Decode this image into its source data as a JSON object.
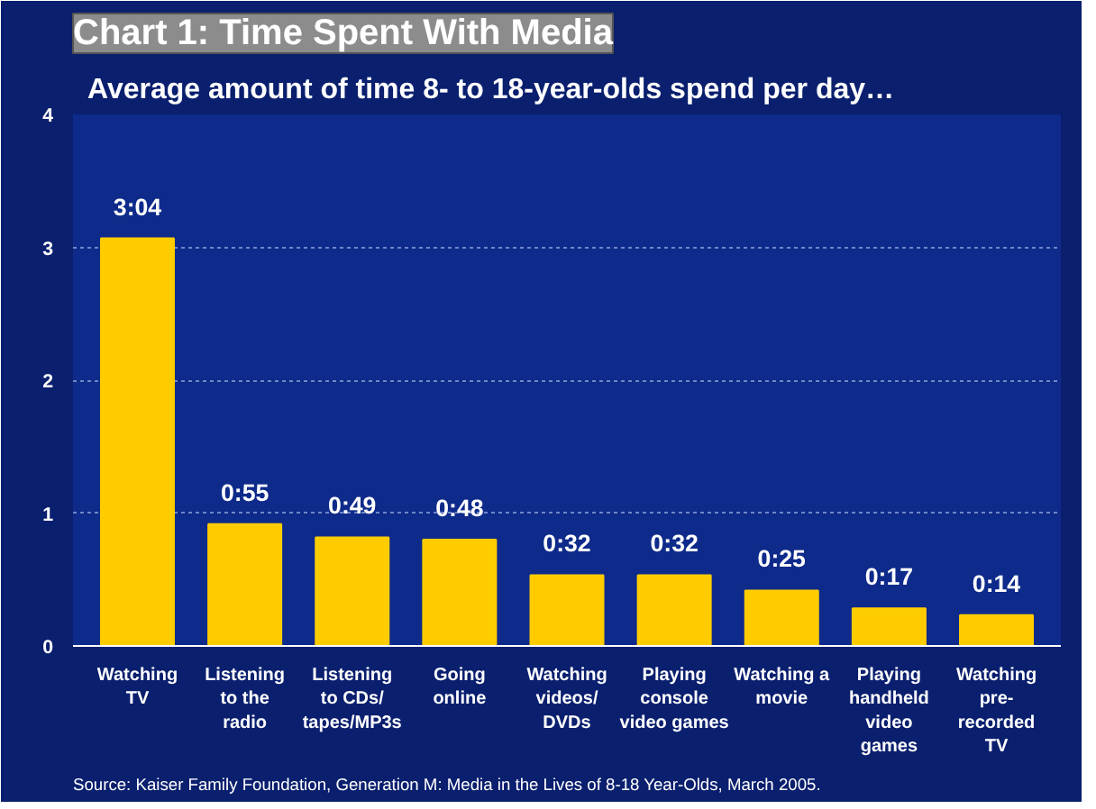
{
  "chart_data": {
    "type": "bar",
    "title": "Chart 1: Time Spent With Media",
    "subtitle": "Average amount of time 8- to 18-year-olds spend per day…",
    "categories": [
      "Watching\nTV",
      "Listening\nto the\nradio",
      "Listening\nto CDs/\ntapes/MP3s",
      "Going\nonline",
      "Watching\nvideos/\nDVDs",
      "Playing\nconsole\nvideo games",
      "Watching a\nmovie",
      "Playing\nhandheld\nvideo\ngames",
      "Watching\npre-\nrecorded\nTV"
    ],
    "values": [
      3.067,
      0.917,
      0.817,
      0.8,
      0.533,
      0.533,
      0.417,
      0.283,
      0.233
    ],
    "value_labels": [
      "3:04",
      "0:55",
      "0:49",
      "0:48",
      "0:32",
      "0:32",
      "0:25",
      "0:17",
      "0:14"
    ],
    "color": "#ffcc00",
    "ylim": [
      0,
      4
    ],
    "yticks": [
      0,
      1,
      2,
      3,
      4
    ],
    "grid": "y",
    "annotations": [
      "Source: Kaiser Family Foundation, Generation M: Media in the Lives of 8-18 Year-Olds, March 2005."
    ]
  }
}
